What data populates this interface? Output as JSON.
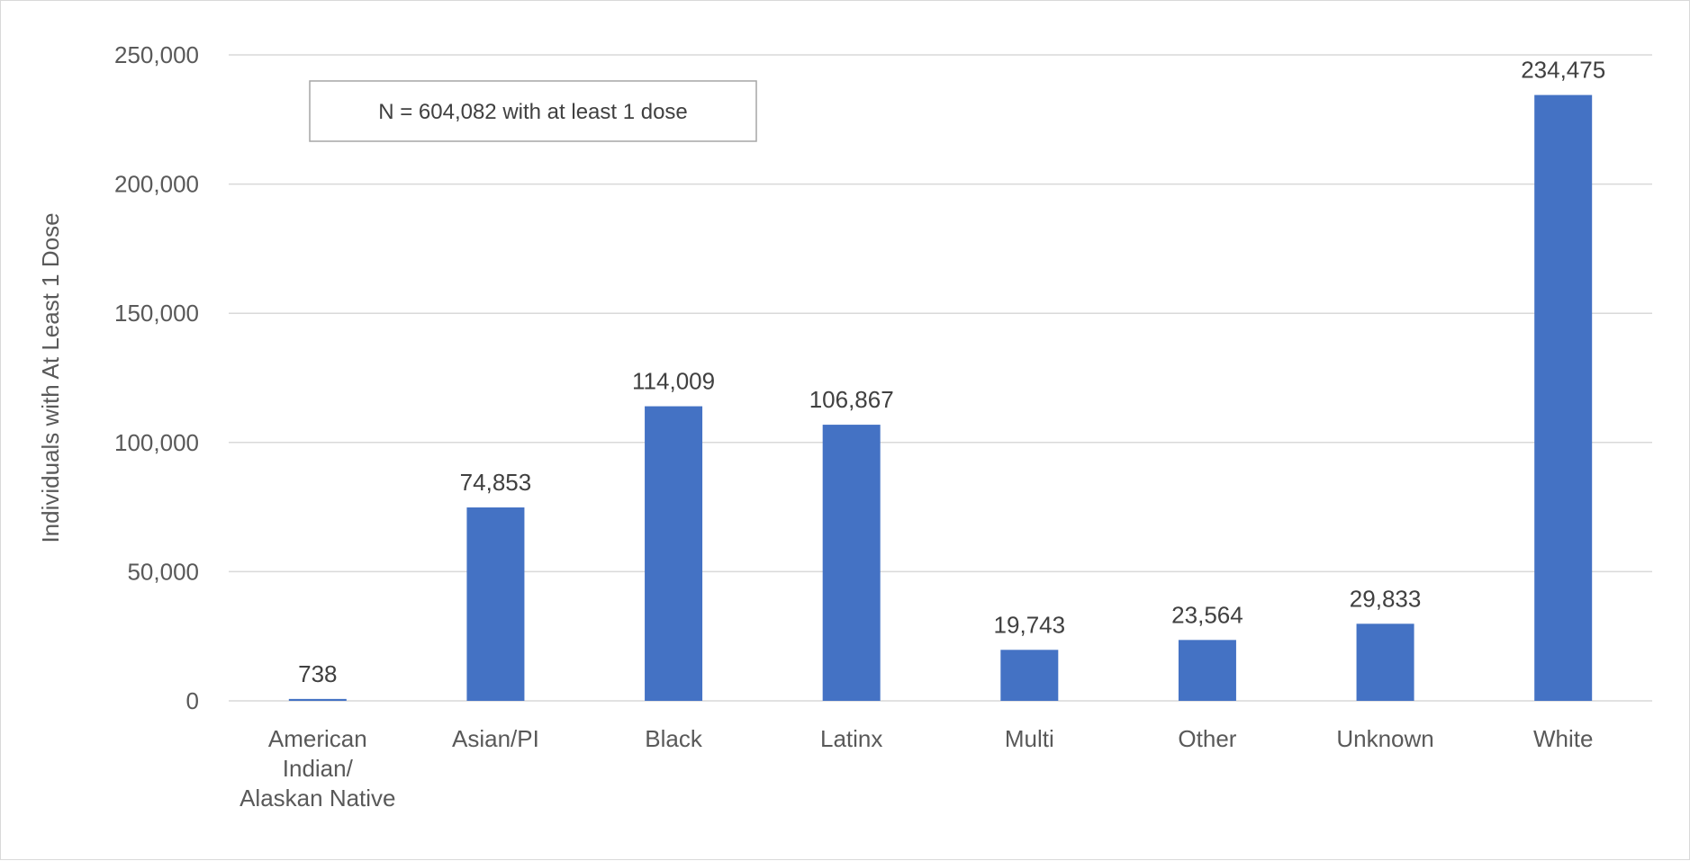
{
  "chart_data": {
    "type": "bar",
    "title": "",
    "xlabel": "",
    "ylabel": "Individuals with At Least 1 Dose",
    "categories": [
      [
        "American",
        "Indian/",
        "Alaskan Native"
      ],
      [
        "Asian/PI"
      ],
      [
        "Black"
      ],
      [
        "Latinx"
      ],
      [
        "Multi"
      ],
      [
        "Other"
      ],
      [
        "Unknown"
      ],
      [
        "White"
      ]
    ],
    "values": [
      738,
      74853,
      114009,
      106867,
      19743,
      23564,
      29833,
      234475
    ],
    "data_labels": [
      "738",
      "74,853",
      "114,009",
      "106,867",
      "19,743",
      "23,564",
      "29,833",
      "234,475"
    ],
    "yticks": [
      0,
      50000,
      100000,
      150000,
      200000,
      250000
    ],
    "ytick_labels": [
      "0",
      "50,000",
      "100,000",
      "150,000",
      "200,000",
      "250,000"
    ],
    "ylim": [
      0,
      250000
    ],
    "grid": true,
    "legend": false,
    "bar_color": "#4472c4",
    "annotation": "N = 604,082 with at least 1 dose"
  }
}
